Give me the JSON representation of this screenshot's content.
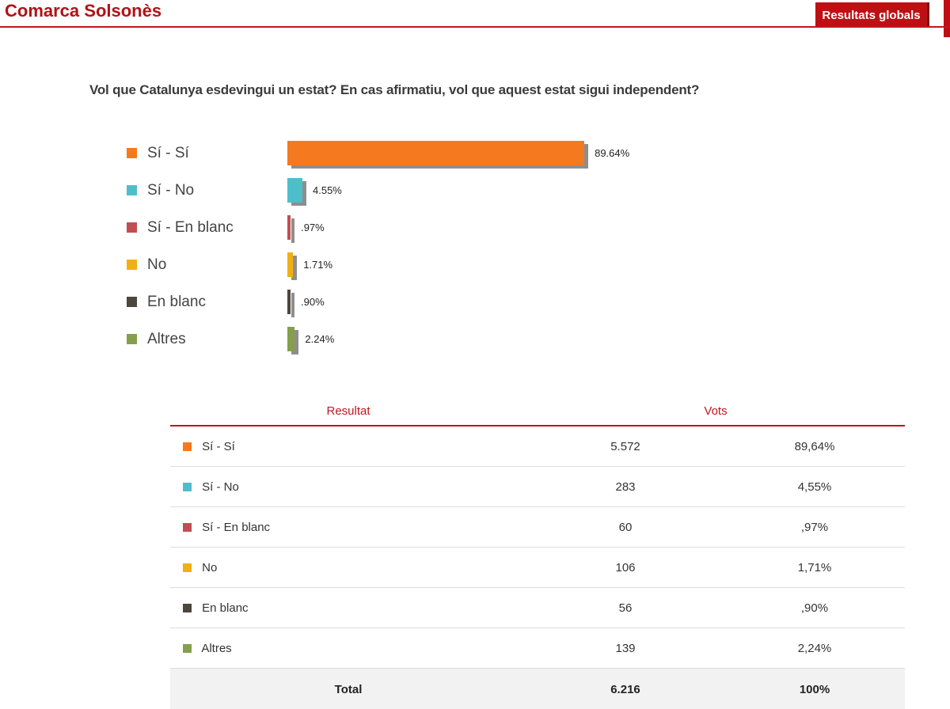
{
  "page": {
    "title": "Comarca Solsonès",
    "button_label": "Resultats globals",
    "question": "Vol que Catalunya esdevingui un estat? En cas afirmatiu, vol que aquest estat sigui independent?"
  },
  "colors": {
    "title_red": "#B11217",
    "accent_red": "#C31420",
    "button_red": "#C00F14",
    "bar_shadow": "#8E8E8E",
    "total_row_bg": "#F2F2F2"
  },
  "chart_data": {
    "type": "bar",
    "orientation": "horizontal",
    "title": "Vol que Catalunya esdevingui un estat? En cas afirmatiu, vol que aquest estat sigui independent?",
    "categories": [
      "Sí - Sí",
      "Sí - No",
      "Sí - En blanc",
      "No",
      "En blanc",
      "Altres"
    ],
    "values": [
      89.64,
      4.55,
      0.97,
      1.71,
      0.9,
      2.24
    ],
    "value_labels": [
      "89.64%",
      "4.55%",
      ".97%",
      "1.71%",
      ".90%",
      "2.24%"
    ],
    "colors": [
      "#F4791F",
      "#4FBECB",
      "#C04E52",
      "#F2AF13",
      "#4D463E",
      "#85A04B"
    ],
    "xlim": [
      0,
      100
    ],
    "legend_position": "left",
    "grid": false
  },
  "table": {
    "col_resultat": "Resultat",
    "col_vots": "Vots",
    "rows": [
      {
        "label": "Sí - Sí",
        "votes": "5.572",
        "pct": "89,64%",
        "color": "#F4791F"
      },
      {
        "label": "Sí - No",
        "votes": "283",
        "pct": "4,55%",
        "color": "#4FBECB"
      },
      {
        "label": "Sí - En blanc",
        "votes": "60",
        "pct": ",97%",
        "color": "#C04E52"
      },
      {
        "label": "No",
        "votes": "106",
        "pct": "1,71%",
        "color": "#F2AF13"
      },
      {
        "label": "En blanc",
        "votes": "56",
        "pct": ",90%",
        "color": "#4D463E"
      },
      {
        "label": "Altres",
        "votes": "139",
        "pct": "2,24%",
        "color": "#85A04B"
      }
    ],
    "total": {
      "label": "Total",
      "votes": "6.216",
      "pct": "100%"
    }
  }
}
